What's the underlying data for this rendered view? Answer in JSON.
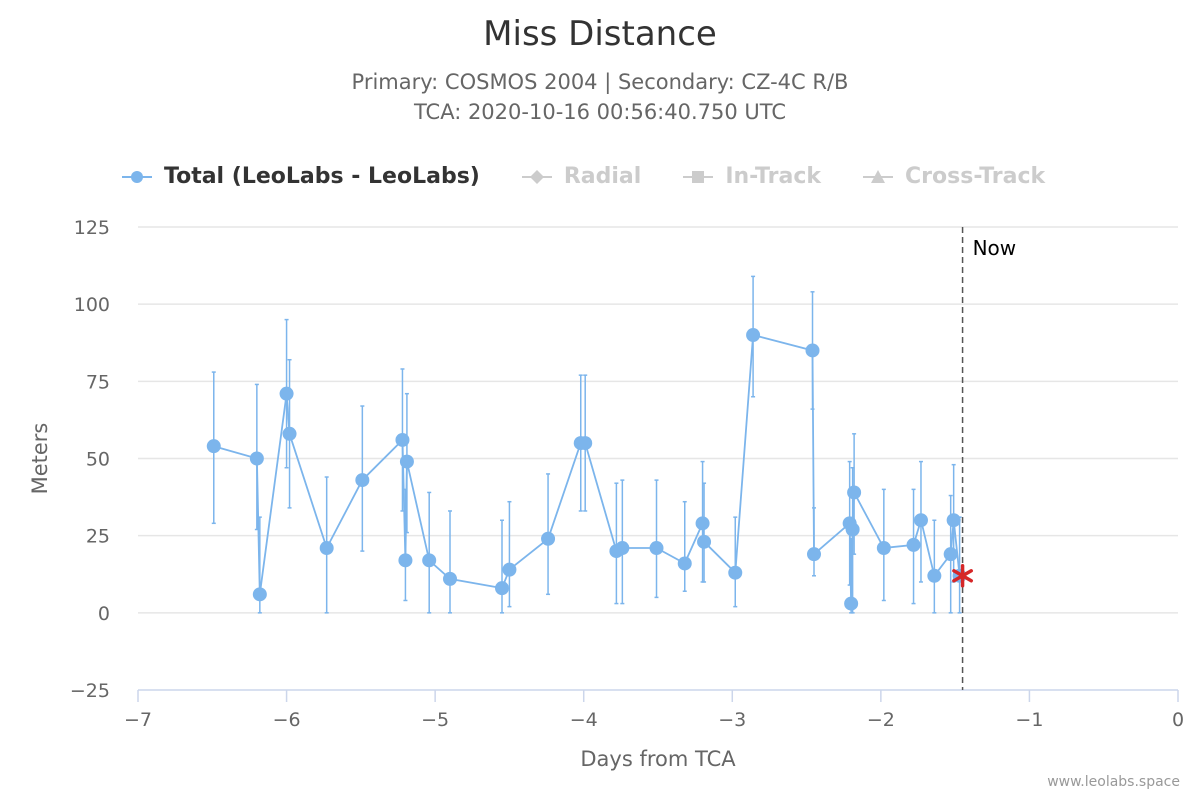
{
  "chart_data": {
    "type": "line",
    "title": "Miss Distance",
    "subtitle_line1": "Primary: COSMOS 2004 | Secondary: CZ-4C R/B",
    "subtitle_line2": "TCA: 2020-10-16 00:56:40.750 UTC",
    "xlabel": "Days from TCA",
    "ylabel": "Meters",
    "xlim": [
      -7,
      0
    ],
    "ylim": [
      -25,
      125
    ],
    "xticks": [
      -7,
      -6,
      -5,
      -4,
      -3,
      -2,
      -1,
      0
    ],
    "yticks": [
      -25,
      0,
      25,
      50,
      75,
      100,
      125
    ],
    "grid": true,
    "legend_position": "top-left",
    "series": [
      {
        "name": "Total (LeoLabs - LeoLabs)",
        "color": "#7cb5ec",
        "marker": "circle",
        "visible": true,
        "points": [
          {
            "x": -6.49,
            "y": 54,
            "low": 29,
            "high": 78
          },
          {
            "x": -6.2,
            "y": 50,
            "low": 27,
            "high": 74
          },
          {
            "x": -6.18,
            "y": 6,
            "low": 0,
            "high": 31
          },
          {
            "x": -6.0,
            "y": 71,
            "low": 47,
            "high": 95
          },
          {
            "x": -5.98,
            "y": 58,
            "low": 34,
            "high": 82
          },
          {
            "x": -5.73,
            "y": 21,
            "low": 0,
            "high": 44
          },
          {
            "x": -5.49,
            "y": 43,
            "low": 20,
            "high": 67
          },
          {
            "x": -5.22,
            "y": 56,
            "low": 33,
            "high": 79
          },
          {
            "x": -5.2,
            "y": 17,
            "low": 4,
            "high": 40
          },
          {
            "x": -5.19,
            "y": 49,
            "low": 26,
            "high": 71
          },
          {
            "x": -5.04,
            "y": 17,
            "low": 0,
            "high": 39
          },
          {
            "x": -4.9,
            "y": 11,
            "low": 0,
            "high": 33
          },
          {
            "x": -4.55,
            "y": 8,
            "low": 0,
            "high": 30
          },
          {
            "x": -4.5,
            "y": 14,
            "low": 2,
            "high": 36
          },
          {
            "x": -4.24,
            "y": 24,
            "low": 6,
            "high": 45
          },
          {
            "x": -4.02,
            "y": 55,
            "low": 33,
            "high": 77
          },
          {
            "x": -3.99,
            "y": 55,
            "low": 33,
            "high": 77
          },
          {
            "x": -3.78,
            "y": 20,
            "low": 3,
            "high": 42
          },
          {
            "x": -3.74,
            "y": 21,
            "low": 3,
            "high": 43
          },
          {
            "x": -3.51,
            "y": 21,
            "low": 5,
            "high": 43
          },
          {
            "x": -3.32,
            "y": 16,
            "low": 7,
            "high": 36
          },
          {
            "x": -3.2,
            "y": 29,
            "low": 10,
            "high": 49
          },
          {
            "x": -3.19,
            "y": 23,
            "low": 10,
            "high": 42
          },
          {
            "x": -2.98,
            "y": 13,
            "low": 2,
            "high": 31
          },
          {
            "x": -2.86,
            "y": 90,
            "low": 70,
            "high": 109
          },
          {
            "x": -2.46,
            "y": 85,
            "low": 66,
            "high": 104
          },
          {
            "x": -2.45,
            "y": 19,
            "low": 12,
            "high": 34
          },
          {
            "x": -2.21,
            "y": 29,
            "low": 9,
            "high": 49
          },
          {
            "x": -2.2,
            "y": 3,
            "low": 0,
            "high": 24
          },
          {
            "x": -2.19,
            "y": 27,
            "low": 0,
            "high": 47
          },
          {
            "x": -2.18,
            "y": 39,
            "low": 19,
            "high": 58
          },
          {
            "x": -1.98,
            "y": 21,
            "low": 4,
            "high": 40
          },
          {
            "x": -1.78,
            "y": 22,
            "low": 3,
            "high": 40
          },
          {
            "x": -1.73,
            "y": 30,
            "low": 10,
            "high": 49
          },
          {
            "x": -1.64,
            "y": 12,
            "low": 0,
            "high": 30
          },
          {
            "x": -1.53,
            "y": 19,
            "low": 0,
            "high": 38
          },
          {
            "x": -1.51,
            "y": 30,
            "low": 10,
            "high": 48
          },
          {
            "x": -1.47,
            "y": 12,
            "low": 0,
            "high": 31
          }
        ]
      },
      {
        "name": "Radial",
        "marker": "diamond",
        "visible": false,
        "points": []
      },
      {
        "name": "In-Track",
        "marker": "square",
        "visible": false,
        "points": []
      },
      {
        "name": "Cross-Track",
        "marker": "triangle",
        "visible": false,
        "points": []
      }
    ],
    "now_line": {
      "x": -1.45,
      "label": "Now"
    },
    "current_marker": {
      "x": -1.45,
      "y": 12,
      "symbol": "asterisk",
      "color": "#d62728"
    }
  },
  "credits": "www.leolabs.space"
}
